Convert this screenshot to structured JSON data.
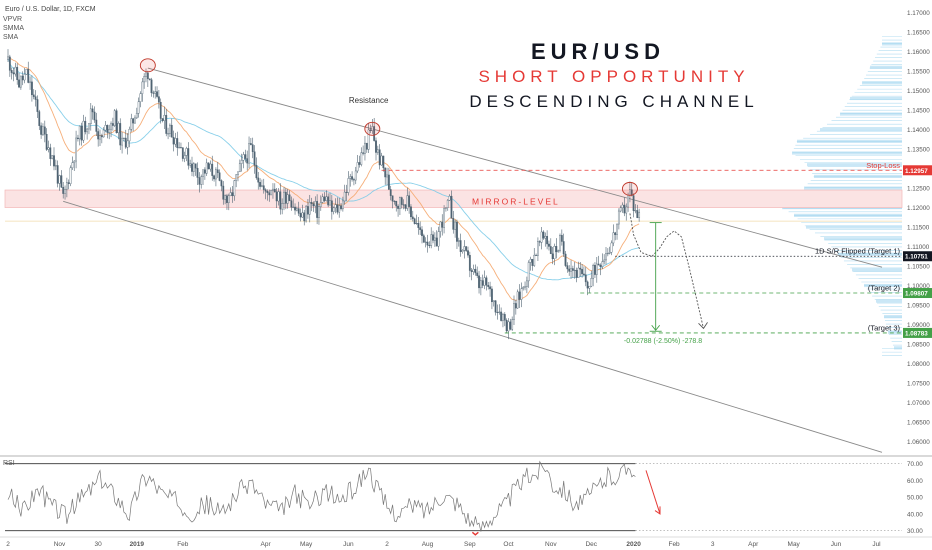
{
  "header": {
    "symbol_line": "Euro / U.S. Dollar, 1D, FXCM",
    "indicators": [
      "VPVR",
      "SMMA",
      "SMA"
    ]
  },
  "headline": {
    "line1": "EUR/USD",
    "line2": "SHORT OPPORTUNITY",
    "line3": "DESCENDING CHANNEL"
  },
  "colors": {
    "accent_red": "#e53935",
    "accent_green": "#43a047",
    "text_dark": "#131722",
    "candle_body": "#4f6372",
    "volume_profile": "#9fd4ee",
    "sma": "#7ccbe8",
    "smma": "#f5a66b",
    "mirror_band": "#fbe3e3"
  },
  "chart_data": {
    "type": "line",
    "instrument": "EUR/USD",
    "timeframe": "1D",
    "ylim": [
      1.0565,
      1.1725
    ],
    "xlabels": [
      {
        "t": 0,
        "label": "2"
      },
      {
        "t": 28,
        "label": "Nov"
      },
      {
        "t": 49,
        "label": "30"
      },
      {
        "t": 70,
        "label": "2019"
      },
      {
        "t": 95,
        "label": "Feb"
      },
      {
        "t": 140,
        "label": "Apr"
      },
      {
        "t": 162,
        "label": "May"
      },
      {
        "t": 185,
        "label": "Jun"
      },
      {
        "t": 206,
        "label": "2"
      },
      {
        "t": 228,
        "label": "Aug"
      },
      {
        "t": 251,
        "label": "Sep"
      },
      {
        "t": 272,
        "label": "Oct"
      },
      {
        "t": 295,
        "label": "Nov"
      },
      {
        "t": 317,
        "label": "Dec"
      },
      {
        "t": 340,
        "label": "2020"
      },
      {
        "t": 362,
        "label": "Feb"
      },
      {
        "t": 383,
        "label": "3"
      },
      {
        "t": 405,
        "label": "Apr"
      },
      {
        "t": 427,
        "label": "May"
      },
      {
        "t": 450,
        "label": "Jun"
      },
      {
        "t": 472,
        "label": "Jul"
      }
    ],
    "yticks": [
      1.17,
      1.165,
      1.16,
      1.155,
      1.15,
      1.145,
      1.14,
      1.135,
      1.13,
      1.125,
      1.12,
      1.115,
      1.11,
      1.105,
      1.1,
      1.095,
      1.09,
      1.085,
      1.08,
      1.075,
      1.07,
      1.065,
      1.06
    ],
    "ytick_labels": [
      "1.17000",
      "1.16500",
      "1.16000",
      "1.15500",
      "1.15000",
      "1.14500",
      "1.14000",
      "1.13500",
      "1.13000",
      "1.12500",
      "1.12000",
      "1.11500",
      "1.11000",
      "1.10500",
      "1.10000",
      "1.09500",
      "1.09000",
      "1.08500",
      "1.08000",
      "1.07500",
      "1.07000",
      "1.06500",
      "1.06000"
    ],
    "price_anchors": [
      [
        0,
        1.158
      ],
      [
        6,
        1.152
      ],
      [
        10,
        1.154
      ],
      [
        14,
        1.148
      ],
      [
        18,
        1.14
      ],
      [
        22,
        1.136
      ],
      [
        26,
        1.13
      ],
      [
        30,
        1.122
      ],
      [
        34,
        1.13
      ],
      [
        38,
        1.138
      ],
      [
        42,
        1.141
      ],
      [
        46,
        1.145
      ],
      [
        50,
        1.137
      ],
      [
        54,
        1.141
      ],
      [
        58,
        1.143
      ],
      [
        62,
        1.136
      ],
      [
        66,
        1.139
      ],
      [
        70,
        1.146
      ],
      [
        74,
        1.153
      ],
      [
        76,
        1.155
      ],
      [
        80,
        1.148
      ],
      [
        84,
        1.142
      ],
      [
        88,
        1.14
      ],
      [
        92,
        1.137
      ],
      [
        96,
        1.134
      ],
      [
        100,
        1.131
      ],
      [
        104,
        1.128
      ],
      [
        108,
        1.13
      ],
      [
        112,
        1.129
      ],
      [
        116,
        1.125
      ],
      [
        120,
        1.121
      ],
      [
        124,
        1.127
      ],
      [
        128,
        1.132
      ],
      [
        132,
        1.135
      ],
      [
        136,
        1.128
      ],
      [
        140,
        1.123
      ],
      [
        144,
        1.126
      ],
      [
        148,
        1.121
      ],
      [
        152,
        1.124
      ],
      [
        156,
        1.12
      ],
      [
        160,
        1.117
      ],
      [
        164,
        1.121
      ],
      [
        168,
        1.119
      ],
      [
        172,
        1.123
      ],
      [
        176,
        1.119
      ],
      [
        180,
        1.12
      ],
      [
        184,
        1.125
      ],
      [
        188,
        1.129
      ],
      [
        192,
        1.133
      ],
      [
        196,
        1.138
      ],
      [
        198,
        1.14
      ],
      [
        200,
        1.135
      ],
      [
        204,
        1.13
      ],
      [
        208,
        1.124
      ],
      [
        212,
        1.121
      ],
      [
        216,
        1.122
      ],
      [
        220,
        1.118
      ],
      [
        224,
        1.113
      ],
      [
        228,
        1.112
      ],
      [
        232,
        1.11
      ],
      [
        236,
        1.117
      ],
      [
        240,
        1.121
      ],
      [
        244,
        1.112
      ],
      [
        248,
        1.108
      ],
      [
        252,
        1.104
      ],
      [
        256,
        1.1
      ],
      [
        260,
        1.1
      ],
      [
        264,
        1.096
      ],
      [
        268,
        1.093
      ],
      [
        272,
        1.0895
      ],
      [
        276,
        1.095
      ],
      [
        280,
        1.1
      ],
      [
        284,
        1.106
      ],
      [
        288,
        1.11
      ],
      [
        292,
        1.113
      ],
      [
        296,
        1.108
      ],
      [
        300,
        1.111
      ],
      [
        304,
        1.106
      ],
      [
        308,
        1.104
      ],
      [
        312,
        1.102
      ],
      [
        316,
        1.1
      ],
      [
        320,
        1.106
      ],
      [
        324,
        1.108
      ],
      [
        328,
        1.111
      ],
      [
        332,
        1.117
      ],
      [
        336,
        1.121
      ],
      [
        338,
        1.124
      ],
      [
        341,
        1.119
      ],
      [
        343,
        1.118
      ]
    ],
    "rsi_anchors": [
      [
        0,
        52
      ],
      [
        8,
        42
      ],
      [
        16,
        55
      ],
      [
        24,
        45
      ],
      [
        32,
        39
      ],
      [
        40,
        50
      ],
      [
        50,
        60
      ],
      [
        58,
        52
      ],
      [
        66,
        40
      ],
      [
        72,
        58
      ],
      [
        76,
        63
      ],
      [
        84,
        52
      ],
      [
        92,
        47
      ],
      [
        100,
        41
      ],
      [
        108,
        46
      ],
      [
        116,
        40
      ],
      [
        124,
        52
      ],
      [
        132,
        59
      ],
      [
        140,
        46
      ],
      [
        148,
        41
      ],
      [
        156,
        52
      ],
      [
        164,
        45
      ],
      [
        172,
        54
      ],
      [
        180,
        48
      ],
      [
        188,
        55
      ],
      [
        196,
        67
      ],
      [
        200,
        56
      ],
      [
        206,
        44
      ],
      [
        212,
        40
      ],
      [
        220,
        45
      ],
      [
        228,
        42
      ],
      [
        236,
        52
      ],
      [
        244,
        47
      ],
      [
        252,
        35
      ],
      [
        256,
        31
      ],
      [
        262,
        38
      ],
      [
        270,
        45
      ],
      [
        276,
        55
      ],
      [
        282,
        62
      ],
      [
        288,
        65
      ],
      [
        292,
        70
      ],
      [
        296,
        58
      ],
      [
        302,
        55
      ],
      [
        308,
        46
      ],
      [
        314,
        48
      ],
      [
        320,
        56
      ],
      [
        326,
        62
      ],
      [
        332,
        63
      ],
      [
        336,
        66
      ],
      [
        338,
        71
      ],
      [
        341,
        62
      ]
    ],
    "channel_upper": [
      [
        76,
        1.1558
      ],
      [
        475,
        1.1047
      ]
    ],
    "channel_lower": [
      [
        30,
        1.1216
      ],
      [
        475,
        1.0572
      ]
    ],
    "mirror_level": [
      1.12,
      1.1245
    ],
    "stop_loss": 1.12957,
    "targets": [
      {
        "name": "1D S/R Flipped (Target 1)",
        "price": 1.10751
      },
      {
        "name": "(Target 2)",
        "price": 1.09807
      },
      {
        "name": "(Target 3)",
        "price": 1.08783
      }
    ],
    "projection_path": [
      [
        338,
        1.1185
      ],
      [
        340,
        1.113
      ],
      [
        344,
        1.1085
      ],
      [
        350,
        1.1075
      ],
      [
        354,
        1.1095
      ],
      [
        358,
        1.1125
      ],
      [
        362,
        1.114
      ],
      [
        366,
        1.1125
      ],
      [
        370,
        1.105
      ],
      [
        374,
        1.097
      ],
      [
        378,
        1.089
      ]
    ],
    "measure": {
      "t": 352,
      "from": 1.11614,
      "to": 1.08826
    },
    "volume_profile": [
      [
        1.162,
        20
      ],
      [
        1.156,
        32
      ],
      [
        1.152,
        40
      ],
      [
        1.148,
        52
      ],
      [
        1.144,
        62
      ],
      [
        1.14,
        82
      ],
      [
        1.137,
        105
      ],
      [
        1.134,
        110
      ],
      [
        1.131,
        95
      ],
      [
        1.128,
        88
      ],
      [
        1.125,
        98
      ],
      [
        1.122,
        115
      ],
      [
        1.12,
        120
      ],
      [
        1.118,
        108
      ],
      [
        1.115,
        96
      ],
      [
        1.112,
        78
      ],
      [
        1.108,
        64
      ],
      [
        1.104,
        50
      ],
      [
        1.1,
        38
      ],
      [
        1.096,
        26
      ],
      [
        1.092,
        18
      ],
      [
        1.088,
        14
      ],
      [
        1.084,
        8
      ]
    ],
    "rsi_levels": [
      70,
      30
    ],
    "rsi_ticks": [
      70,
      60,
      50,
      40,
      30
    ],
    "rsi_tick_labels": [
      "70.00",
      "60.00",
      "50.00",
      "40.00",
      "30.00"
    ],
    "price_tags": [
      {
        "price": 1.12957,
        "label": "1.12957",
        "color": "#e53935"
      },
      {
        "price": 1.10751,
        "label": "1.10751",
        "color": "#131722"
      },
      {
        "price": 1.09807,
        "label": "1.09807",
        "color": "#43a047"
      },
      {
        "price": 1.08783,
        "label": "1.08783",
        "color": "#43a047"
      }
    ],
    "annotations": {
      "resistance": "Resistance",
      "mirror_level": "MIRROR-LEVEL",
      "stop_loss": "Stop-Loss",
      "target1": "1D S/R Flipped (Target 1)",
      "target2": "(Target 2)",
      "target3": "(Target 3)",
      "measure": "-0.02788 (-2.50%) -278.8",
      "rsi": "RSI"
    }
  }
}
